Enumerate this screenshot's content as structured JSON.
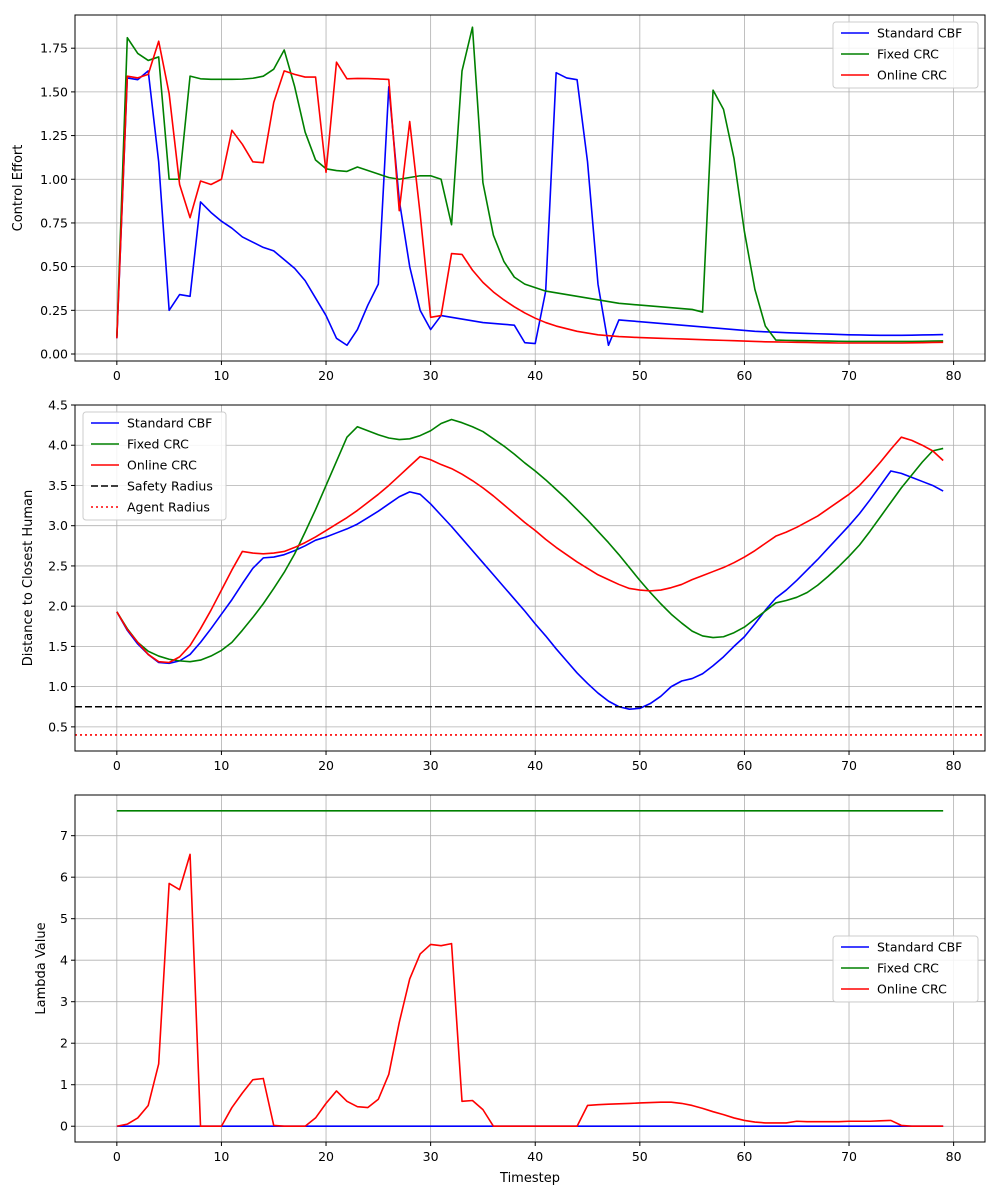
{
  "chart_data": [
    {
      "type": "line",
      "title": "",
      "xlabel": "",
      "ylabel": "Control Effort",
      "xlim": [
        -4,
        83
      ],
      "ylim": [
        -0.04,
        1.94
      ],
      "xticks": [
        0,
        10,
        20,
        30,
        40,
        50,
        60,
        70,
        80
      ],
      "xticklabels": [
        "0",
        "10",
        "20",
        "30",
        "40",
        "50",
        "60",
        "70",
        "80"
      ],
      "yticks": [
        0,
        0.25,
        0.5,
        0.75,
        1.0,
        1.25,
        1.5,
        1.75
      ],
      "yticklabels": [
        "0.00",
        "0.25",
        "0.50",
        "0.75",
        "1.00",
        "1.25",
        "1.50",
        "1.75"
      ],
      "grid": true,
      "legend_position": "top-right",
      "series": [
        {
          "name": "Standard CBF",
          "color": "#0000ff",
          "style": "solid",
          "values": [
            0.09,
            1.58,
            1.57,
            1.62,
            1.1,
            0.25,
            0.34,
            0.33,
            0.87,
            0.81,
            0.76,
            0.72,
            0.67,
            0.64,
            0.61,
            0.59,
            0.54,
            0.49,
            0.42,
            0.32,
            0.22,
            0.09,
            0.05,
            0.14,
            0.28,
            0.4,
            1.53,
            0.88,
            0.5,
            0.25,
            0.14,
            0.22,
            0.21,
            0.2,
            0.19,
            0.18,
            0.175,
            0.17,
            0.165,
            0.065,
            0.06,
            0.36,
            1.61,
            1.58,
            1.57,
            1.1,
            0.4,
            0.05,
            0.195,
            0.19,
            0.185,
            0.18,
            0.175,
            0.17,
            0.165,
            0.16,
            0.155,
            0.15,
            0.145,
            0.14,
            0.135,
            0.13,
            0.127,
            0.125,
            0.122,
            0.12,
            0.118,
            0.116,
            0.114,
            0.112,
            0.11,
            0.109,
            0.108,
            0.107,
            0.107,
            0.107,
            0.108,
            0.109,
            0.11,
            0.111
          ]
        },
        {
          "name": "Fixed CRC",
          "color": "#008000",
          "style": "solid",
          "values": [
            0.1,
            1.81,
            1.72,
            1.68,
            1.7,
            1.0,
            1.0,
            1.59,
            1.575,
            1.572,
            1.572,
            1.572,
            1.573,
            1.578,
            1.59,
            1.63,
            1.74,
            1.53,
            1.27,
            1.11,
            1.06,
            1.05,
            1.045,
            1.07,
            1.05,
            1.03,
            1.01,
            1.0,
            1.01,
            1.02,
            1.02,
            1.0,
            0.74,
            1.62,
            1.87,
            0.98,
            0.68,
            0.53,
            0.44,
            0.4,
            0.38,
            0.36,
            0.35,
            0.34,
            0.33,
            0.32,
            0.31,
            0.3,
            0.29,
            0.285,
            0.28,
            0.275,
            0.27,
            0.265,
            0.26,
            0.255,
            0.24,
            1.51,
            1.4,
            1.12,
            0.7,
            0.37,
            0.16,
            0.08,
            0.078,
            0.077,
            0.076,
            0.075,
            0.074,
            0.073,
            0.072,
            0.072,
            0.072,
            0.072,
            0.072,
            0.072,
            0.072,
            0.073,
            0.074,
            0.075
          ]
        },
        {
          "name": "Online CRC",
          "color": "#ff0000",
          "style": "solid",
          "values": [
            0.09,
            1.59,
            1.58,
            1.6,
            1.79,
            1.49,
            0.97,
            0.78,
            0.99,
            0.97,
            1.0,
            1.28,
            1.2,
            1.1,
            1.095,
            1.44,
            1.62,
            1.6,
            1.585,
            1.585,
            1.04,
            1.67,
            1.575,
            1.577,
            1.576,
            1.574,
            1.571,
            0.82,
            1.33,
            0.8,
            0.21,
            0.22,
            0.575,
            0.57,
            0.48,
            0.41,
            0.355,
            0.31,
            0.27,
            0.235,
            0.205,
            0.18,
            0.16,
            0.145,
            0.13,
            0.12,
            0.11,
            0.105,
            0.1,
            0.097,
            0.094,
            0.092,
            0.09,
            0.088,
            0.086,
            0.084,
            0.082,
            0.08,
            0.078,
            0.076,
            0.074,
            0.072,
            0.07,
            0.069,
            0.068,
            0.067,
            0.066,
            0.065,
            0.064,
            0.063,
            0.063,
            0.063,
            0.063,
            0.063,
            0.063,
            0.063,
            0.064,
            0.065,
            0.066,
            0.067
          ]
        }
      ]
    },
    {
      "type": "line",
      "title": "",
      "xlabel": "",
      "ylabel": "Distance to Closest Human",
      "xlim": [
        -4,
        83
      ],
      "ylim": [
        0.2,
        4.5
      ],
      "xticks": [
        0,
        10,
        20,
        30,
        40,
        50,
        60,
        70,
        80
      ],
      "xticklabels": [
        "0",
        "10",
        "20",
        "30",
        "40",
        "50",
        "60",
        "70",
        "80"
      ],
      "yticks": [
        0.5,
        1.0,
        1.5,
        2.0,
        2.5,
        3.0,
        3.5,
        4.0,
        4.5
      ],
      "yticklabels": [
        "0.5",
        "1.0",
        "1.5",
        "2.0",
        "2.5",
        "3.0",
        "3.5",
        "4.0",
        "4.5"
      ],
      "grid": true,
      "legend_position": "top-left",
      "series": [
        {
          "name": "Standard CBF",
          "color": "#0000ff",
          "style": "solid",
          "values": [
            1.93,
            1.7,
            1.53,
            1.4,
            1.3,
            1.29,
            1.32,
            1.4,
            1.55,
            1.72,
            1.9,
            2.08,
            2.28,
            2.47,
            2.6,
            2.61,
            2.64,
            2.69,
            2.75,
            2.82,
            2.86,
            2.91,
            2.96,
            3.02,
            3.1,
            3.18,
            3.27,
            3.36,
            3.42,
            3.39,
            3.27,
            3.13,
            2.99,
            2.84,
            2.69,
            2.54,
            2.39,
            2.24,
            2.09,
            1.94,
            1.78,
            1.63,
            1.47,
            1.32,
            1.17,
            1.04,
            0.92,
            0.82,
            0.75,
            0.72,
            0.73,
            0.79,
            0.88,
            1.0,
            1.07,
            1.1,
            1.16,
            1.26,
            1.37,
            1.5,
            1.62,
            1.78,
            1.95,
            2.1,
            2.2,
            2.32,
            2.45,
            2.58,
            2.72,
            2.86,
            3.0,
            3.15,
            3.32,
            3.5,
            3.68,
            3.65,
            3.6,
            3.55,
            3.5,
            3.43
          ]
        },
        {
          "name": "Fixed CRC",
          "color": "#008000",
          "style": "solid",
          "values": [
            1.93,
            1.72,
            1.55,
            1.44,
            1.38,
            1.34,
            1.32,
            1.31,
            1.33,
            1.38,
            1.45,
            1.55,
            1.7,
            1.86,
            2.03,
            2.22,
            2.42,
            2.65,
            2.92,
            3.2,
            3.5,
            3.8,
            4.1,
            4.23,
            4.18,
            4.13,
            4.09,
            4.07,
            4.08,
            4.12,
            4.18,
            4.27,
            4.32,
            4.28,
            4.23,
            4.17,
            4.08,
            3.99,
            3.89,
            3.78,
            3.68,
            3.57,
            3.45,
            3.33,
            3.2,
            3.07,
            2.93,
            2.79,
            2.64,
            2.48,
            2.32,
            2.17,
            2.03,
            1.9,
            1.79,
            1.69,
            1.63,
            1.61,
            1.62,
            1.67,
            1.74,
            1.84,
            1.94,
            2.04,
            2.07,
            2.11,
            2.17,
            2.26,
            2.37,
            2.49,
            2.62,
            2.76,
            2.93,
            3.11,
            3.29,
            3.47,
            3.63,
            3.79,
            3.93,
            3.96
          ]
        },
        {
          "name": "Online CRC",
          "color": "#ff0000",
          "style": "solid",
          "values": [
            1.93,
            1.71,
            1.55,
            1.4,
            1.31,
            1.3,
            1.37,
            1.51,
            1.72,
            1.95,
            2.2,
            2.45,
            2.68,
            2.66,
            2.65,
            2.66,
            2.68,
            2.73,
            2.79,
            2.86,
            2.94,
            3.02,
            3.1,
            3.19,
            3.29,
            3.39,
            3.5,
            3.62,
            3.74,
            3.86,
            3.82,
            3.76,
            3.71,
            3.64,
            3.56,
            3.47,
            3.37,
            3.26,
            3.15,
            3.04,
            2.94,
            2.83,
            2.73,
            2.64,
            2.55,
            2.47,
            2.39,
            2.33,
            2.27,
            2.22,
            2.2,
            2.19,
            2.2,
            2.23,
            2.27,
            2.33,
            2.38,
            2.43,
            2.48,
            2.54,
            2.61,
            2.69,
            2.78,
            2.87,
            2.92,
            2.98,
            3.05,
            3.12,
            3.21,
            3.3,
            3.39,
            3.5,
            3.64,
            3.79,
            3.95,
            4.1,
            4.06,
            4.0,
            3.93,
            3.81
          ]
        },
        {
          "name": "Safety Radius",
          "color": "#000000",
          "style": "dashed",
          "constant": 0.75
        },
        {
          "name": "Agent Radius",
          "color": "#ff0000",
          "style": "dotted",
          "constant": 0.4
        }
      ]
    },
    {
      "type": "line",
      "title": "",
      "xlabel": "Timestep",
      "ylabel": "Lambda Value",
      "xlim": [
        -4,
        83
      ],
      "ylim": [
        -0.38,
        7.98
      ],
      "xticks": [
        0,
        10,
        20,
        30,
        40,
        50,
        60,
        70,
        80
      ],
      "xticklabels": [
        "0",
        "10",
        "20",
        "30",
        "40",
        "50",
        "60",
        "70",
        "80"
      ],
      "yticks": [
        0,
        1,
        2,
        3,
        4,
        5,
        6,
        7
      ],
      "yticklabels": [
        "0",
        "1",
        "2",
        "3",
        "4",
        "5",
        "6",
        "7"
      ],
      "grid": true,
      "legend_position": "center-right",
      "series": [
        {
          "name": "Standard CBF",
          "color": "#0000ff",
          "style": "solid",
          "constant": 0.0
        },
        {
          "name": "Fixed CRC",
          "color": "#008000",
          "style": "solid",
          "constant": 7.6
        },
        {
          "name": "Online CRC",
          "color": "#ff0000",
          "style": "solid",
          "values": [
            0,
            0.05,
            0.2,
            0.5,
            1.5,
            5.85,
            5.7,
            6.55,
            0,
            0,
            0,
            0.45,
            0.8,
            1.12,
            1.15,
            0.02,
            0,
            0,
            0,
            0.2,
            0.55,
            0.85,
            0.6,
            0.47,
            0.45,
            0.65,
            1.25,
            2.5,
            3.55,
            4.15,
            4.38,
            4.35,
            4.4,
            0.6,
            0.62,
            0.4,
            0,
            0,
            0,
            0,
            0,
            0,
            0,
            0,
            0,
            0.5,
            0.52,
            0.53,
            0.54,
            0.55,
            0.56,
            0.57,
            0.58,
            0.58,
            0.55,
            0.5,
            0.43,
            0.35,
            0.28,
            0.2,
            0.14,
            0.1,
            0.08,
            0.08,
            0.08,
            0.12,
            0.11,
            0.11,
            0.11,
            0.11,
            0.12,
            0.12,
            0.12,
            0.13,
            0.14,
            0.02,
            0,
            0,
            0,
            0
          ]
        }
      ]
    }
  ]
}
